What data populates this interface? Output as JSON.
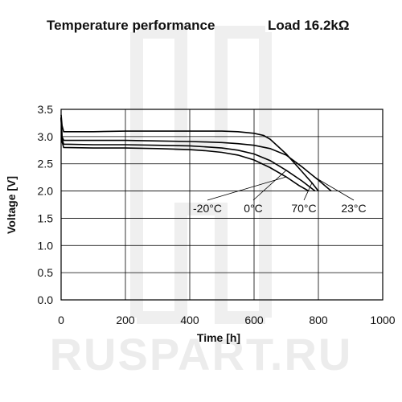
{
  "watermark": "RUSPART.RU",
  "chart_data": {
    "type": "line",
    "title": "Temperature performance",
    "subtitle": "Load 16.2kΩ",
    "xlabel": "Time [h]",
    "ylabel": "Voltage [V]",
    "xlim": [
      0,
      1000
    ],
    "ylim": [
      0.0,
      3.5
    ],
    "xticks": [
      "0",
      "200",
      "400",
      "600",
      "800",
      "1000"
    ],
    "yticks": [
      "0.0",
      "0.5",
      "1.0",
      "1.5",
      "2.0",
      "2.5",
      "3.0",
      "3.5"
    ],
    "grid": true,
    "series": [
      {
        "name": "-20°C",
        "x": [
          0,
          3,
          8,
          100,
          200,
          300,
          400,
          450,
          500,
          550,
          600,
          650,
          700,
          740,
          770
        ],
        "y": [
          3.35,
          2.9,
          2.8,
          2.79,
          2.79,
          2.78,
          2.76,
          2.74,
          2.71,
          2.66,
          2.57,
          2.43,
          2.26,
          2.1,
          2.0
        ]
      },
      {
        "name": "0°C",
        "x": [
          0,
          3,
          8,
          100,
          200,
          300,
          400,
          450,
          500,
          550,
          600,
          650,
          700,
          750,
          790
        ],
        "y": [
          3.35,
          2.95,
          2.86,
          2.85,
          2.85,
          2.84,
          2.83,
          2.81,
          2.79,
          2.75,
          2.68,
          2.56,
          2.38,
          2.18,
          2.0
        ]
      },
      {
        "name": "70°C",
        "x": [
          0,
          3,
          8,
          100,
          200,
          300,
          400,
          450,
          500,
          550,
          600,
          630,
          650,
          700,
          750,
          780,
          800
        ],
        "y": [
          3.4,
          3.2,
          3.09,
          3.09,
          3.1,
          3.1,
          3.1,
          3.1,
          3.1,
          3.09,
          3.06,
          3.02,
          2.95,
          2.68,
          2.35,
          2.15,
          2.0
        ]
      },
      {
        "name": "23°C",
        "x": [
          0,
          3,
          8,
          100,
          200,
          300,
          400,
          450,
          500,
          550,
          600,
          650,
          700,
          750,
          800,
          840
        ],
        "y": [
          3.35,
          3.0,
          2.93,
          2.93,
          2.93,
          2.92,
          2.91,
          2.9,
          2.89,
          2.87,
          2.84,
          2.78,
          2.66,
          2.44,
          2.2,
          2.0
        ]
      }
    ],
    "annotations": [
      {
        "text": "-20°C",
        "series": 0,
        "at_x": 700
      },
      {
        "text": "0°C",
        "series": 1,
        "at_x": 700
      },
      {
        "text": "70°C",
        "series": 2,
        "at_x": 780
      },
      {
        "text": "23°C",
        "series": 3,
        "at_x": 790
      }
    ]
  }
}
